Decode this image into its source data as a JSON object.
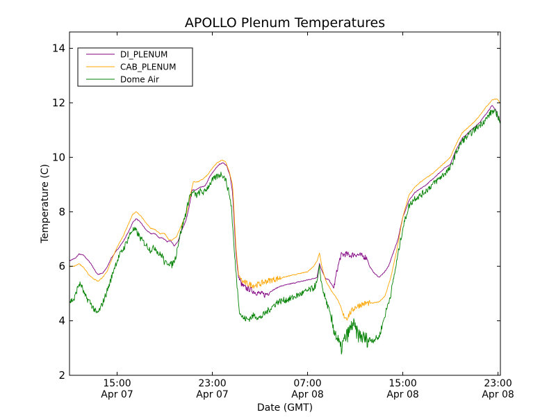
{
  "chart_data": {
    "type": "line",
    "title": "APOLLO Plenum Temperatures",
    "xlabel": "Date (GMT)",
    "ylabel": "Temperature (C)",
    "x_unit": "hours since 2012-04-07 11:00 GMT",
    "xlim": [
      0,
      36.2
    ],
    "ylim": [
      2,
      14.6
    ],
    "grid": false,
    "legend_position": "top-left",
    "x_ticks": [
      {
        "value": 4,
        "time": "15:00",
        "date": "Apr 07"
      },
      {
        "value": 12,
        "time": "23:00",
        "date": "Apr 07"
      },
      {
        "value": 20,
        "time": "07:00",
        "date": "Apr 08"
      },
      {
        "value": 28,
        "time": "15:00",
        "date": "Apr 08"
      },
      {
        "value": 36,
        "time": "23:00",
        "date": "Apr 08"
      }
    ],
    "y_ticks": [
      {
        "value": 2,
        "label": "2"
      },
      {
        "value": 4,
        "label": "4"
      },
      {
        "value": 6,
        "label": "6"
      },
      {
        "value": 8,
        "label": "8"
      },
      {
        "value": 10,
        "label": "10"
      },
      {
        "value": 12,
        "label": "12"
      },
      {
        "value": 14,
        "label": "14"
      }
    ],
    "series": [
      {
        "name": "DI_PLENUM",
        "color": "#800080",
        "noisy_segments": [
          [
            14.2,
            16.8
          ],
          [
            22.2,
            25.0
          ]
        ],
        "points": [
          [
            0.0,
            6.2
          ],
          [
            0.5,
            6.3
          ],
          [
            0.8,
            6.45
          ],
          [
            1.2,
            6.4
          ],
          [
            1.8,
            6.1
          ],
          [
            2.2,
            5.8
          ],
          [
            2.4,
            5.7
          ],
          [
            2.8,
            5.75
          ],
          [
            3.2,
            6.0
          ],
          [
            3.5,
            6.3
          ],
          [
            4.0,
            6.6
          ],
          [
            4.5,
            6.9
          ],
          [
            5.0,
            7.3
          ],
          [
            5.3,
            7.6
          ],
          [
            5.6,
            7.75
          ],
          [
            6.0,
            7.6
          ],
          [
            6.4,
            7.35
          ],
          [
            6.8,
            7.2
          ],
          [
            7.2,
            7.2
          ],
          [
            7.5,
            7.05
          ],
          [
            7.8,
            7.05
          ],
          [
            8.2,
            6.9
          ],
          [
            8.5,
            6.95
          ],
          [
            8.8,
            6.75
          ],
          [
            9.1,
            6.9
          ],
          [
            9.4,
            7.3
          ],
          [
            9.8,
            7.7
          ],
          [
            10.1,
            8.3
          ],
          [
            10.3,
            8.8
          ],
          [
            10.6,
            8.8
          ],
          [
            11.0,
            8.9
          ],
          [
            11.4,
            8.95
          ],
          [
            11.8,
            9.3
          ],
          [
            12.2,
            9.55
          ],
          [
            12.6,
            9.75
          ],
          [
            12.9,
            9.8
          ],
          [
            13.2,
            9.7
          ],
          [
            13.5,
            9.3
          ],
          [
            13.7,
            8.7
          ],
          [
            13.85,
            7.5
          ],
          [
            14.0,
            6.4
          ],
          [
            14.2,
            5.6
          ],
          [
            14.5,
            5.3
          ],
          [
            14.8,
            5.2
          ],
          [
            15.2,
            5.15
          ],
          [
            15.6,
            5.05
          ],
          [
            16.0,
            5.0
          ],
          [
            16.4,
            4.95
          ],
          [
            16.8,
            5.05
          ],
          [
            17.2,
            5.15
          ],
          [
            17.6,
            5.25
          ],
          [
            18.0,
            5.3
          ],
          [
            18.5,
            5.35
          ],
          [
            19.0,
            5.4
          ],
          [
            19.5,
            5.45
          ],
          [
            20.0,
            5.5
          ],
          [
            20.5,
            5.55
          ],
          [
            20.8,
            5.6
          ],
          [
            21.0,
            6.1
          ],
          [
            21.2,
            5.85
          ],
          [
            21.5,
            5.55
          ],
          [
            21.8,
            5.5
          ],
          [
            22.0,
            5.35
          ],
          [
            22.2,
            5.2
          ],
          [
            22.5,
            5.9
          ],
          [
            22.8,
            6.4
          ],
          [
            23.2,
            6.45
          ],
          [
            23.6,
            6.4
          ],
          [
            24.0,
            6.45
          ],
          [
            24.4,
            6.4
          ],
          [
            24.8,
            6.35
          ],
          [
            25.0,
            6.3
          ],
          [
            25.2,
            6.0
          ],
          [
            25.6,
            5.75
          ],
          [
            26.0,
            5.6
          ],
          [
            26.4,
            5.75
          ],
          [
            26.8,
            6.0
          ],
          [
            27.2,
            6.5
          ],
          [
            27.6,
            7.0
          ],
          [
            28.0,
            7.8
          ],
          [
            28.5,
            8.4
          ],
          [
            29.0,
            8.7
          ],
          [
            29.5,
            8.85
          ],
          [
            30.0,
            9.0
          ],
          [
            30.5,
            9.2
          ],
          [
            31.0,
            9.4
          ],
          [
            31.5,
            9.6
          ],
          [
            32.0,
            9.75
          ],
          [
            32.5,
            10.3
          ],
          [
            33.0,
            10.7
          ],
          [
            33.5,
            10.9
          ],
          [
            34.0,
            11.1
          ],
          [
            34.5,
            11.3
          ],
          [
            35.0,
            11.6
          ],
          [
            35.5,
            11.9
          ],
          [
            35.8,
            11.75
          ],
          [
            36.0,
            11.5
          ],
          [
            36.2,
            11.3
          ]
        ]
      },
      {
        "name": "CAB_PLENUM",
        "color": "#FFA500",
        "noisy_segments": [
          [
            14.4,
            17.8
          ],
          [
            23.0,
            25.2
          ]
        ],
        "points": [
          [
            0.0,
            6.0
          ],
          [
            0.4,
            6.0
          ],
          [
            0.8,
            6.1
          ],
          [
            1.2,
            5.95
          ],
          [
            1.6,
            5.7
          ],
          [
            2.0,
            5.55
          ],
          [
            2.4,
            5.45
          ],
          [
            2.8,
            5.6
          ],
          [
            3.2,
            5.85
          ],
          [
            3.6,
            6.3
          ],
          [
            4.0,
            6.7
          ],
          [
            4.5,
            7.1
          ],
          [
            5.0,
            7.6
          ],
          [
            5.3,
            7.9
          ],
          [
            5.6,
            8.0
          ],
          [
            6.0,
            7.85
          ],
          [
            6.4,
            7.6
          ],
          [
            6.8,
            7.4
          ],
          [
            7.2,
            7.35
          ],
          [
            7.6,
            7.2
          ],
          [
            8.0,
            7.2
          ],
          [
            8.3,
            7.0
          ],
          [
            8.6,
            6.95
          ],
          [
            9.0,
            7.1
          ],
          [
            9.5,
            7.6
          ],
          [
            9.8,
            7.9
          ],
          [
            10.1,
            8.5
          ],
          [
            10.4,
            9.1
          ],
          [
            10.8,
            9.1
          ],
          [
            11.2,
            9.2
          ],
          [
            11.6,
            9.35
          ],
          [
            12.0,
            9.6
          ],
          [
            12.4,
            9.8
          ],
          [
            12.8,
            9.9
          ],
          [
            13.1,
            9.85
          ],
          [
            13.4,
            9.5
          ],
          [
            13.7,
            9.0
          ],
          [
            13.85,
            7.8
          ],
          [
            14.0,
            6.6
          ],
          [
            14.2,
            5.7
          ],
          [
            14.5,
            5.45
          ],
          [
            15.0,
            5.35
          ],
          [
            15.5,
            5.3
          ],
          [
            16.0,
            5.35
          ],
          [
            16.5,
            5.45
          ],
          [
            17.0,
            5.5
          ],
          [
            17.5,
            5.55
          ],
          [
            18.0,
            5.6
          ],
          [
            18.5,
            5.65
          ],
          [
            19.0,
            5.7
          ],
          [
            19.5,
            5.75
          ],
          [
            20.0,
            5.8
          ],
          [
            20.5,
            6.0
          ],
          [
            20.8,
            6.2
          ],
          [
            21.0,
            6.5
          ],
          [
            21.2,
            6.0
          ],
          [
            21.5,
            5.5
          ],
          [
            22.0,
            5.1
          ],
          [
            22.5,
            4.8
          ],
          [
            22.8,
            4.5
          ],
          [
            23.0,
            4.2
          ],
          [
            23.3,
            4.1
          ],
          [
            23.6,
            4.3
          ],
          [
            24.0,
            4.5
          ],
          [
            24.5,
            4.6
          ],
          [
            25.0,
            4.65
          ],
          [
            25.5,
            4.65
          ],
          [
            26.0,
            4.7
          ],
          [
            26.5,
            4.9
          ],
          [
            27.0,
            5.6
          ],
          [
            27.5,
            6.6
          ],
          [
            28.0,
            7.8
          ],
          [
            28.5,
            8.6
          ],
          [
            29.0,
            8.9
          ],
          [
            29.5,
            9.1
          ],
          [
            30.0,
            9.25
          ],
          [
            30.5,
            9.4
          ],
          [
            31.0,
            9.6
          ],
          [
            31.5,
            9.8
          ],
          [
            32.0,
            10.0
          ],
          [
            32.5,
            10.5
          ],
          [
            33.0,
            10.9
          ],
          [
            33.5,
            11.1
          ],
          [
            34.0,
            11.3
          ],
          [
            34.5,
            11.55
          ],
          [
            35.0,
            11.85
          ],
          [
            35.5,
            12.1
          ],
          [
            35.9,
            12.15
          ],
          [
            36.2,
            12.0
          ]
        ]
      },
      {
        "name": "Dome Air",
        "color": "#008000",
        "noisy_segments": [
          [
            0,
            36.2
          ]
        ],
        "points": [
          [
            0.0,
            4.7
          ],
          [
            0.4,
            4.8
          ],
          [
            0.6,
            5.1
          ],
          [
            0.8,
            5.35
          ],
          [
            1.0,
            5.3
          ],
          [
            1.3,
            4.9
          ],
          [
            1.7,
            4.7
          ],
          [
            2.1,
            4.4
          ],
          [
            2.3,
            4.25
          ],
          [
            2.6,
            4.45
          ],
          [
            3.0,
            4.9
          ],
          [
            3.4,
            5.4
          ],
          [
            3.8,
            6.0
          ],
          [
            4.2,
            6.4
          ],
          [
            4.6,
            6.7
          ],
          [
            5.0,
            7.1
          ],
          [
            5.3,
            7.35
          ],
          [
            5.6,
            7.3
          ],
          [
            6.0,
            7.0
          ],
          [
            6.4,
            6.8
          ],
          [
            6.8,
            6.6
          ],
          [
            7.2,
            6.7
          ],
          [
            7.5,
            6.45
          ],
          [
            7.8,
            6.4
          ],
          [
            8.0,
            6.1
          ],
          [
            8.3,
            6.15
          ],
          [
            8.6,
            6.05
          ],
          [
            8.9,
            6.3
          ],
          [
            9.2,
            7.0
          ],
          [
            9.5,
            7.5
          ],
          [
            9.8,
            8.0
          ],
          [
            10.1,
            8.6
          ],
          [
            10.4,
            8.7
          ],
          [
            10.7,
            8.6
          ],
          [
            11.0,
            8.75
          ],
          [
            11.3,
            8.7
          ],
          [
            11.6,
            8.9
          ],
          [
            12.0,
            9.15
          ],
          [
            12.4,
            9.3
          ],
          [
            12.8,
            9.4
          ],
          [
            13.1,
            9.2
          ],
          [
            13.4,
            8.7
          ],
          [
            13.6,
            8.2
          ],
          [
            13.85,
            6.5
          ],
          [
            14.1,
            5.2
          ],
          [
            14.3,
            4.3
          ],
          [
            14.6,
            4.1
          ],
          [
            15.0,
            4.05
          ],
          [
            15.5,
            4.2
          ],
          [
            16.0,
            4.1
          ],
          [
            16.5,
            4.3
          ],
          [
            17.0,
            4.5
          ],
          [
            17.5,
            4.7
          ],
          [
            18.0,
            4.75
          ],
          [
            18.5,
            4.8
          ],
          [
            19.0,
            4.9
          ],
          [
            19.5,
            5.0
          ],
          [
            20.0,
            5.1
          ],
          [
            20.5,
            5.2
          ],
          [
            20.8,
            5.4
          ],
          [
            21.0,
            5.95
          ],
          [
            21.2,
            5.3
          ],
          [
            21.5,
            4.8
          ],
          [
            21.8,
            4.4
          ],
          [
            22.0,
            4.0
          ],
          [
            22.3,
            3.6
          ],
          [
            22.6,
            3.2
          ],
          [
            22.8,
            2.95
          ],
          [
            23.1,
            3.3
          ],
          [
            23.5,
            3.6
          ],
          [
            23.8,
            3.9
          ],
          [
            24.2,
            3.5
          ],
          [
            24.6,
            3.4
          ],
          [
            25.0,
            3.3
          ],
          [
            25.5,
            3.3
          ],
          [
            26.0,
            3.4
          ],
          [
            26.5,
            4.2
          ],
          [
            27.0,
            5.0
          ],
          [
            27.5,
            6.2
          ],
          [
            28.0,
            7.4
          ],
          [
            28.5,
            8.2
          ],
          [
            29.0,
            8.5
          ],
          [
            29.5,
            8.6
          ],
          [
            30.0,
            8.8
          ],
          [
            30.5,
            9.0
          ],
          [
            31.0,
            9.2
          ],
          [
            31.5,
            9.4
          ],
          [
            32.0,
            9.6
          ],
          [
            32.5,
            10.2
          ],
          [
            33.0,
            10.6
          ],
          [
            33.5,
            10.8
          ],
          [
            34.0,
            11.0
          ],
          [
            34.5,
            11.2
          ],
          [
            35.0,
            11.4
          ],
          [
            35.5,
            11.7
          ],
          [
            35.9,
            11.6
          ],
          [
            36.2,
            11.3
          ]
        ]
      }
    ]
  }
}
